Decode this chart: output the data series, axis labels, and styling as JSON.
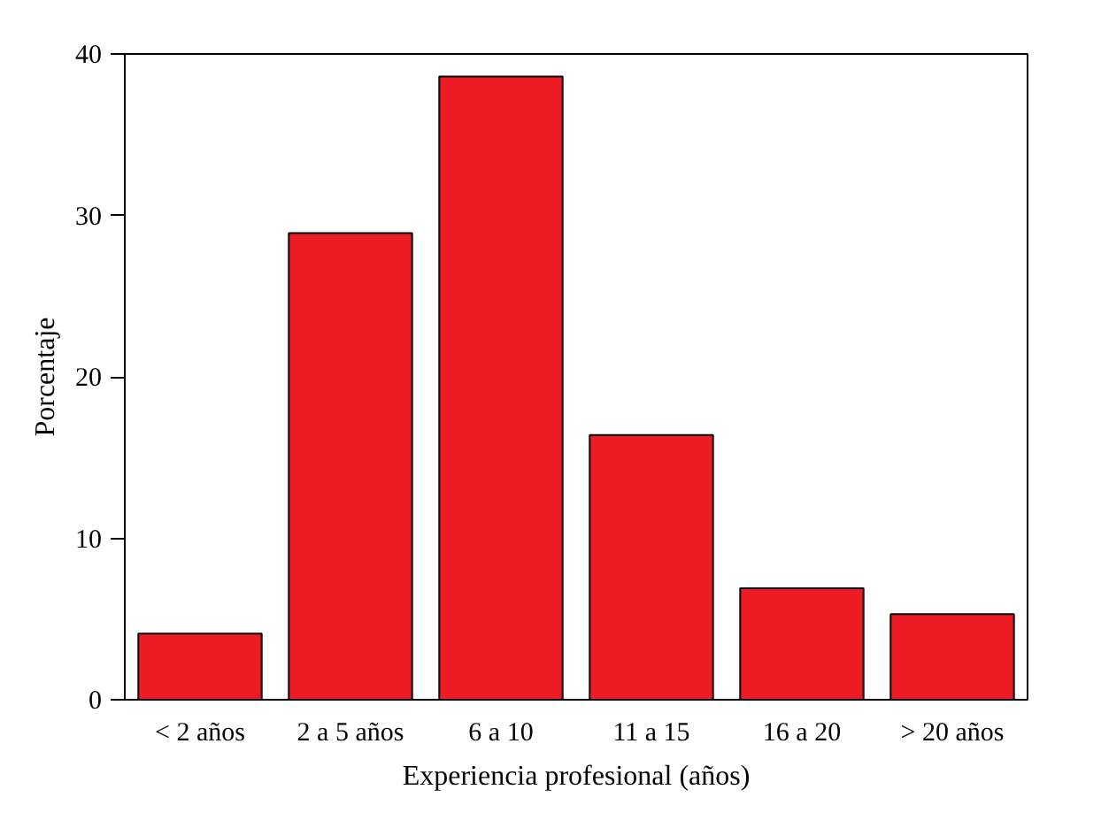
{
  "chart_data": {
    "type": "bar",
    "xlabel": "Experiencia profesional (años)",
    "ylabel": "Porcentaje",
    "categories": [
      "< 2 años",
      "2 a 5 años",
      "6 a 10",
      "11 a 15",
      "16 a 20",
      "> 20 años"
    ],
    "values": [
      4.1,
      28.9,
      38.6,
      16.4,
      6.9,
      5.3
    ],
    "color": "#ed1c24",
    "ylim": [
      0,
      40
    ],
    "yticks": [
      0,
      10,
      20,
      30,
      40
    ],
    "grid": false
  }
}
